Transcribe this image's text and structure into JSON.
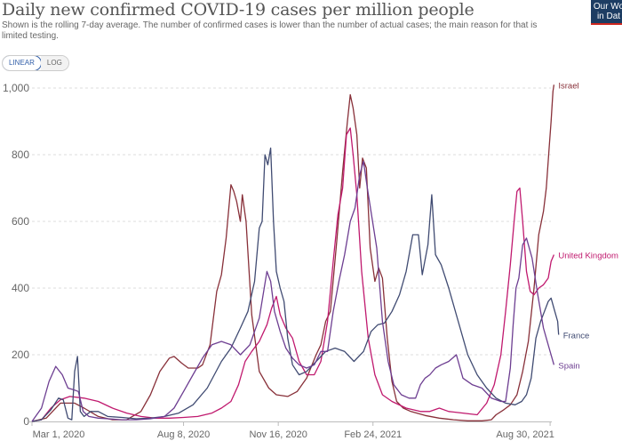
{
  "header": {
    "title": "Daily new confirmed COVID-19 cases per million people",
    "subtitle": "Shown is the rolling 7-day average. The number of confirmed cases is lower than the number of actual cases; the main reason for that is limited testing.",
    "logo_line1": "Our Wo",
    "logo_line2": "in Dat"
  },
  "scale_toggle": {
    "options": [
      "LINEAR",
      "LOG"
    ],
    "selected": "LINEAR"
  },
  "chart_data": {
    "type": "line",
    "title": "Daily new confirmed COVID-19 cases per million people",
    "xlabel": "",
    "ylabel": "",
    "x_unit": "days since Mar 1, 2020",
    "xlim": [
      -3,
      550
    ],
    "ylim": [
      0,
      1000
    ],
    "yticks": [
      0,
      200,
      400,
      600,
      800,
      1000
    ],
    "ytick_labels": [
      "0",
      "200",
      "400",
      "600",
      "800",
      "1,000"
    ],
    "xticks": [
      0,
      160,
      260,
      360,
      547
    ],
    "xtick_labels": [
      "Mar 1, 2020",
      "Aug 8, 2020",
      "Nov 16, 2020",
      "Feb 24, 2021",
      "Aug 30, 2021"
    ],
    "grid": true,
    "legend": "end-of-line labels",
    "series": [
      {
        "name": "Israel",
        "color": "#883039",
        "points": [
          [
            0,
            0
          ],
          [
            15,
            10
          ],
          [
            30,
            55
          ],
          [
            45,
            55
          ],
          [
            55,
            40
          ],
          [
            70,
            15
          ],
          [
            85,
            5
          ],
          [
            100,
            5
          ],
          [
            115,
            30
          ],
          [
            125,
            80
          ],
          [
            135,
            150
          ],
          [
            145,
            190
          ],
          [
            150,
            195
          ],
          [
            158,
            175
          ],
          [
            165,
            160
          ],
          [
            175,
            160
          ],
          [
            180,
            170
          ],
          [
            188,
            230
          ],
          [
            195,
            390
          ],
          [
            200,
            440
          ],
          [
            205,
            550
          ],
          [
            210,
            710
          ],
          [
            213,
            690
          ],
          [
            216,
            660
          ],
          [
            220,
            600
          ],
          [
            222,
            680
          ],
          [
            226,
            600
          ],
          [
            232,
            320
          ],
          [
            240,
            150
          ],
          [
            250,
            100
          ],
          [
            258,
            80
          ],
          [
            270,
            75
          ],
          [
            280,
            90
          ],
          [
            290,
            130
          ],
          [
            300,
            200
          ],
          [
            305,
            230
          ],
          [
            310,
            300
          ],
          [
            315,
            330
          ],
          [
            322,
            550
          ],
          [
            328,
            750
          ],
          [
            333,
            900
          ],
          [
            336,
            980
          ],
          [
            339,
            940
          ],
          [
            343,
            860
          ],
          [
            346,
            700
          ],
          [
            349,
            790
          ],
          [
            353,
            760
          ],
          [
            357,
            520
          ],
          [
            362,
            420
          ],
          [
            366,
            460
          ],
          [
            370,
            430
          ],
          [
            375,
            250
          ],
          [
            380,
            120
          ],
          [
            385,
            60
          ],
          [
            392,
            40
          ],
          [
            400,
            30
          ],
          [
            415,
            18
          ],
          [
            430,
            10
          ],
          [
            445,
            5
          ],
          [
            460,
            2
          ],
          [
            475,
            2
          ],
          [
            485,
            5
          ],
          [
            490,
            20
          ],
          [
            498,
            35
          ],
          [
            505,
            50
          ],
          [
            512,
            80
          ],
          [
            518,
            150
          ],
          [
            524,
            240
          ],
          [
            530,
            400
          ],
          [
            535,
            560
          ],
          [
            540,
            630
          ],
          [
            543,
            700
          ],
          [
            546,
            820
          ],
          [
            548,
            900
          ],
          [
            550,
            990
          ],
          [
            551,
            1010
          ]
        ]
      },
      {
        "name": "United Kingdom",
        "color": "#c0196e",
        "points": [
          [
            0,
            0
          ],
          [
            10,
            5
          ],
          [
            20,
            40
          ],
          [
            30,
            65
          ],
          [
            40,
            75
          ],
          [
            55,
            70
          ],
          [
            70,
            60
          ],
          [
            85,
            40
          ],
          [
            100,
            25
          ],
          [
            115,
            15
          ],
          [
            130,
            10
          ],
          [
            145,
            10
          ],
          [
            160,
            12
          ],
          [
            175,
            15
          ],
          [
            190,
            25
          ],
          [
            200,
            40
          ],
          [
            210,
            60
          ],
          [
            218,
            110
          ],
          [
            225,
            180
          ],
          [
            232,
            210
          ],
          [
            240,
            240
          ],
          [
            248,
            290
          ],
          [
            253,
            340
          ],
          [
            258,
            375
          ],
          [
            262,
            320
          ],
          [
            268,
            280
          ],
          [
            275,
            250
          ],
          [
            282,
            180
          ],
          [
            290,
            140
          ],
          [
            298,
            140
          ],
          [
            305,
            180
          ],
          [
            312,
            300
          ],
          [
            318,
            480
          ],
          [
            323,
            620
          ],
          [
            328,
            700
          ],
          [
            332,
            860
          ],
          [
            336,
            880
          ],
          [
            339,
            800
          ],
          [
            343,
            680
          ],
          [
            348,
            450
          ],
          [
            355,
            250
          ],
          [
            362,
            140
          ],
          [
            370,
            80
          ],
          [
            380,
            60
          ],
          [
            395,
            40
          ],
          [
            410,
            30
          ],
          [
            420,
            30
          ],
          [
            430,
            40
          ],
          [
            440,
            30
          ],
          [
            455,
            25
          ],
          [
            470,
            20
          ],
          [
            480,
            55
          ],
          [
            488,
            110
          ],
          [
            495,
            200
          ],
          [
            500,
            330
          ],
          [
            505,
            470
          ],
          [
            509,
            600
          ],
          [
            512,
            690
          ],
          [
            515,
            700
          ],
          [
            518,
            600
          ],
          [
            522,
            450
          ],
          [
            526,
            390
          ],
          [
            530,
            380
          ],
          [
            535,
            400
          ],
          [
            540,
            410
          ],
          [
            545,
            430
          ],
          [
            548,
            480
          ],
          [
            551,
            500
          ]
        ]
      },
      {
        "name": "France",
        "color": "#404b72",
        "points": [
          [
            0,
            0
          ],
          [
            10,
            5
          ],
          [
            20,
            35
          ],
          [
            28,
            70
          ],
          [
            33,
            65
          ],
          [
            38,
            10
          ],
          [
            42,
            5
          ],
          [
            45,
            150
          ],
          [
            48,
            195
          ],
          [
            51,
            30
          ],
          [
            55,
            15
          ],
          [
            62,
            30
          ],
          [
            70,
            30
          ],
          [
            80,
            15
          ],
          [
            95,
            12
          ],
          [
            110,
            8
          ],
          [
            125,
            10
          ],
          [
            140,
            15
          ],
          [
            155,
            25
          ],
          [
            170,
            50
          ],
          [
            185,
            100
          ],
          [
            200,
            180
          ],
          [
            210,
            220
          ],
          [
            220,
            280
          ],
          [
            228,
            330
          ],
          [
            235,
            420
          ],
          [
            240,
            580
          ],
          [
            243,
            600
          ],
          [
            246,
            800
          ],
          [
            249,
            770
          ],
          [
            252,
            820
          ],
          [
            255,
            600
          ],
          [
            258,
            450
          ],
          [
            262,
            400
          ],
          [
            266,
            360
          ],
          [
            270,
            250
          ],
          [
            275,
            170
          ],
          [
            282,
            140
          ],
          [
            290,
            150
          ],
          [
            300,
            180
          ],
          [
            310,
            210
          ],
          [
            320,
            220
          ],
          [
            330,
            210
          ],
          [
            340,
            180
          ],
          [
            350,
            210
          ],
          [
            358,
            270
          ],
          [
            365,
            290
          ],
          [
            372,
            295
          ],
          [
            380,
            330
          ],
          [
            388,
            380
          ],
          [
            395,
            450
          ],
          [
            402,
            560
          ],
          [
            408,
            560
          ],
          [
            412,
            440
          ],
          [
            418,
            530
          ],
          [
            422,
            680
          ],
          [
            426,
            500
          ],
          [
            432,
            470
          ],
          [
            440,
            400
          ],
          [
            450,
            300
          ],
          [
            460,
            200
          ],
          [
            470,
            140
          ],
          [
            480,
            100
          ],
          [
            490,
            70
          ],
          [
            500,
            55
          ],
          [
            510,
            50
          ],
          [
            517,
            60
          ],
          [
            522,
            80
          ],
          [
            527,
            130
          ],
          [
            532,
            250
          ],
          [
            537,
            300
          ],
          [
            541,
            330
          ],
          [
            545,
            360
          ],
          [
            548,
            370
          ],
          [
            552,
            330
          ],
          [
            555,
            300
          ],
          [
            556,
            260
          ]
        ]
      },
      {
        "name": "Spain",
        "color": "#6d3e91",
        "points": [
          [
            0,
            0
          ],
          [
            10,
            40
          ],
          [
            18,
            120
          ],
          [
            25,
            165
          ],
          [
            32,
            140
          ],
          [
            38,
            100
          ],
          [
            44,
            95
          ],
          [
            49,
            90
          ],
          [
            54,
            30
          ],
          [
            60,
            15
          ],
          [
            70,
            10
          ],
          [
            80,
            8
          ],
          [
            95,
            5
          ],
          [
            110,
            5
          ],
          [
            125,
            8
          ],
          [
            140,
            15
          ],
          [
            150,
            40
          ],
          [
            160,
            90
          ],
          [
            170,
            140
          ],
          [
            180,
            190
          ],
          [
            190,
            230
          ],
          [
            200,
            240
          ],
          [
            210,
            230
          ],
          [
            220,
            200
          ],
          [
            230,
            230
          ],
          [
            240,
            310
          ],
          [
            248,
            450
          ],
          [
            252,
            420
          ],
          [
            256,
            330
          ],
          [
            262,
            270
          ],
          [
            268,
            220
          ],
          [
            275,
            190
          ],
          [
            282,
            170
          ],
          [
            290,
            160
          ],
          [
            298,
            170
          ],
          [
            305,
            210
          ],
          [
            312,
            210
          ],
          [
            318,
            330
          ],
          [
            324,
            420
          ],
          [
            330,
            500
          ],
          [
            336,
            600
          ],
          [
            341,
            640
          ],
          [
            346,
            740
          ],
          [
            350,
            780
          ],
          [
            354,
            700
          ],
          [
            359,
            610
          ],
          [
            364,
            520
          ],
          [
            370,
            300
          ],
          [
            376,
            180
          ],
          [
            382,
            110
          ],
          [
            390,
            80
          ],
          [
            398,
            70
          ],
          [
            405,
            70
          ],
          [
            410,
            110
          ],
          [
            415,
            130
          ],
          [
            420,
            140
          ],
          [
            426,
            160
          ],
          [
            432,
            170
          ],
          [
            440,
            180
          ],
          [
            448,
            200
          ],
          [
            455,
            130
          ],
          [
            465,
            110
          ],
          [
            475,
            100
          ],
          [
            485,
            70
          ],
          [
            495,
            60
          ],
          [
            500,
            60
          ],
          [
            505,
            160
          ],
          [
            508,
            290
          ],
          [
            511,
            400
          ],
          [
            514,
            430
          ],
          [
            518,
            530
          ],
          [
            522,
            550
          ],
          [
            528,
            490
          ],
          [
            534,
            380
          ],
          [
            540,
            280
          ],
          [
            546,
            220
          ],
          [
            551,
            170
          ]
        ]
      }
    ]
  }
}
